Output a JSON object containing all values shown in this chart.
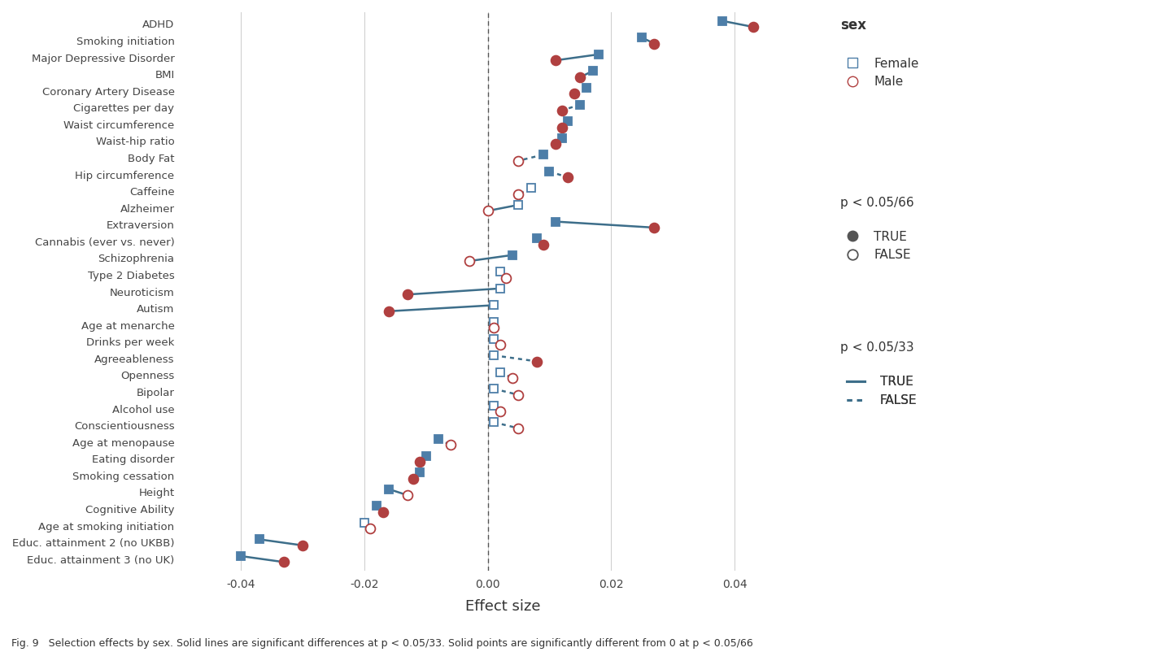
{
  "traits": [
    "ADHD",
    "Smoking initiation",
    "Major Depressive Disorder",
    "BMI",
    "Coronary Artery Disease",
    "Cigarettes per day",
    "Waist circumference",
    "Waist-hip ratio",
    "Body Fat",
    "Hip circumference",
    "Caffeine",
    "Alzheimer",
    "Extraversion",
    "Cannabis (ever vs. never)",
    "Schizophrenia",
    "Type 2 Diabetes",
    "Neuroticism",
    "Autism",
    "Age at menarche",
    "Drinks per week",
    "Agreeableness",
    "Openness",
    "Bipolar",
    "Alcohol use",
    "Conscientiousness",
    "Age at menopause",
    "Eating disorder",
    "Smoking cessation",
    "Height",
    "Cognitive Ability",
    "Age at smoking initiation",
    "Educ. attainment 2 (no UKBB)",
    "Educ. attainment 3 (no UK)"
  ],
  "female_values": [
    0.038,
    0.025,
    0.018,
    0.017,
    0.016,
    0.015,
    0.013,
    0.012,
    0.009,
    0.01,
    0.007,
    0.005,
    0.011,
    0.008,
    0.004,
    0.002,
    0.002,
    0.001,
    0.001,
    0.001,
    0.001,
    0.002,
    0.001,
    0.001,
    0.001,
    -0.008,
    -0.01,
    -0.011,
    -0.016,
    -0.018,
    -0.02,
    -0.037,
    -0.04
  ],
  "male_values": [
    0.043,
    0.027,
    0.011,
    0.015,
    0.014,
    0.012,
    0.012,
    0.011,
    0.005,
    0.013,
    0.005,
    0.0,
    0.027,
    0.009,
    -0.003,
    0.003,
    -0.013,
    -0.016,
    0.001,
    0.002,
    0.008,
    0.004,
    0.005,
    0.002,
    0.005,
    -0.006,
    -0.011,
    -0.012,
    -0.013,
    -0.017,
    -0.019,
    -0.03,
    -0.033
  ],
  "female_sig66": [
    true,
    true,
    true,
    true,
    true,
    true,
    true,
    true,
    true,
    true,
    false,
    false,
    true,
    true,
    true,
    false,
    false,
    false,
    false,
    false,
    false,
    false,
    false,
    false,
    false,
    true,
    true,
    true,
    true,
    true,
    false,
    true,
    true
  ],
  "male_sig66": [
    true,
    true,
    true,
    true,
    true,
    true,
    true,
    true,
    false,
    true,
    false,
    false,
    true,
    true,
    false,
    false,
    true,
    true,
    false,
    false,
    true,
    false,
    false,
    false,
    false,
    false,
    true,
    true,
    false,
    true,
    false,
    true,
    true
  ],
  "line_sig33": [
    true,
    true,
    true,
    true,
    false,
    false,
    false,
    false,
    false,
    false,
    false,
    true,
    true,
    false,
    true,
    false,
    true,
    true,
    false,
    false,
    false,
    false,
    false,
    false,
    false,
    false,
    false,
    false,
    true,
    false,
    false,
    true,
    true
  ],
  "female_color": "#4d7ea8",
  "male_color": "#b04040",
  "line_color": "#3d6e8a",
  "background_color": "#ffffff",
  "xlim": [
    -0.05,
    0.055
  ],
  "xlabel": "Effect size",
  "figcaption": "Fig. 9   Selection effects by sex. Solid lines are significant differences at p < 0.05/33. Solid points are significantly different from 0 at p < 0.05/66"
}
